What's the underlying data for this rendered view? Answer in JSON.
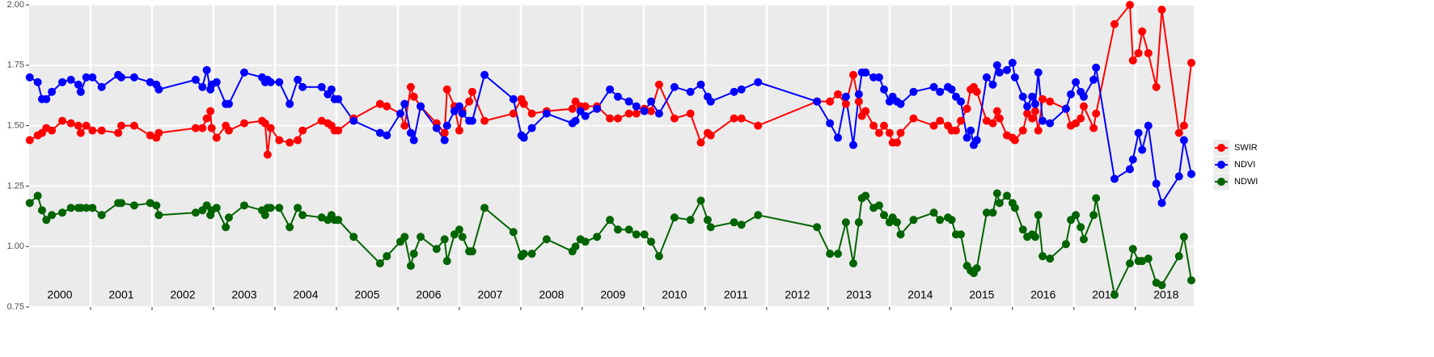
{
  "chart_data": {
    "type": "line",
    "x": [
      2000.01,
      2000.14,
      2000.21,
      2000.28,
      2000.37,
      2000.54,
      2000.68,
      2000.8,
      2000.84,
      2000.93,
      2001.03,
      2001.18,
      2001.45,
      2001.5,
      2001.71,
      2001.97,
      2002.07,
      2002.11,
      2002.71,
      2002.82,
      2002.89,
      2002.95,
      2002.97,
      2003.05,
      2003.2,
      2003.25,
      2003.5,
      2003.79,
      2003.84,
      2003.88,
      2003.93,
      2004.07,
      2004.24,
      2004.37,
      2004.45,
      2004.76,
      2004.86,
      2004.92,
      2004.97,
      2005.03,
      2005.28,
      2005.71,
      2005.82,
      2006.04,
      2006.11,
      2006.21,
      2006.26,
      2006.37,
      2006.63,
      2006.76,
      2006.8,
      2006.92,
      2007.0,
      2007.05,
      2007.16,
      2007.21,
      2007.41,
      2007.88,
      2008.01,
      2008.05,
      2008.18,
      2008.42,
      2008.84,
      2008.89,
      2008.97,
      2009.05,
      2009.24,
      2009.45,
      2009.58,
      2009.76,
      2009.88,
      2010.01,
      2010.12,
      2010.25,
      2010.5,
      2010.76,
      2010.93,
      2011.04,
      2011.09,
      2011.47,
      2011.59,
      2011.86,
      2012.82,
      2013.03,
      2013.16,
      2013.29,
      2013.41,
      2013.5,
      2013.55,
      2013.61,
      2013.74,
      2013.83,
      2013.91,
      2014.0,
      2014.05,
      2014.12,
      2014.18,
      2014.39,
      2014.72,
      2014.82,
      2014.95,
      2015.01,
      2015.08,
      2015.16,
      2015.26,
      2015.32,
      2015.37,
      2015.42,
      2015.58,
      2015.68,
      2015.75,
      2015.79,
      2015.91,
      2016.0,
      2016.04,
      2016.17,
      2016.24,
      2016.32,
      2016.37,
      2016.42,
      2016.49,
      2016.61,
      2016.87,
      2016.95,
      2017.03,
      2017.11,
      2017.16,
      2017.32,
      2017.36,
      2017.66,
      2017.91,
      2017.96,
      2018.05,
      2018.11,
      2018.21,
      2018.34,
      2018.43,
      2018.71,
      2018.79,
      2018.91
    ],
    "series": [
      {
        "name": "SWIR",
        "color": "#ff0000",
        "values": [
          1.44,
          1.46,
          1.47,
          1.49,
          1.48,
          1.52,
          1.51,
          1.5,
          1.47,
          1.5,
          1.48,
          1.48,
          1.47,
          1.5,
          1.5,
          1.46,
          1.45,
          1.47,
          1.49,
          1.49,
          1.53,
          1.56,
          1.49,
          1.45,
          1.5,
          1.48,
          1.51,
          1.52,
          1.51,
          1.38,
          1.49,
          1.44,
          1.43,
          1.44,
          1.48,
          1.52,
          1.51,
          1.5,
          1.48,
          1.48,
          1.53,
          1.59,
          1.58,
          1.55,
          1.5,
          1.66,
          1.62,
          1.58,
          1.51,
          1.47,
          1.65,
          1.58,
          1.48,
          1.56,
          1.6,
          1.64,
          1.52,
          1.55,
          1.61,
          1.59,
          1.55,
          1.56,
          1.57,
          1.6,
          1.58,
          1.58,
          1.58,
          1.53,
          1.53,
          1.55,
          1.55,
          1.57,
          1.56,
          1.67,
          1.53,
          1.55,
          1.43,
          1.47,
          1.46,
          1.53,
          1.53,
          1.5,
          1.6,
          1.6,
          1.63,
          1.59,
          1.71,
          1.6,
          1.54,
          1.56,
          1.5,
          1.47,
          1.5,
          1.47,
          1.43,
          1.43,
          1.47,
          1.53,
          1.5,
          1.52,
          1.5,
          1.48,
          1.48,
          1.52,
          1.57,
          1.65,
          1.66,
          1.64,
          1.52,
          1.51,
          1.56,
          1.53,
          1.46,
          1.45,
          1.44,
          1.48,
          1.55,
          1.53,
          1.56,
          1.48,
          1.61,
          1.6,
          1.57,
          1.5,
          1.51,
          1.53,
          1.58,
          1.49,
          1.55,
          1.92,
          2.0,
          1.77,
          1.8,
          1.89,
          1.8,
          1.66,
          1.98,
          1.47,
          1.5,
          1.76
        ]
      },
      {
        "name": "NDVI",
        "color": "#0000ff",
        "values": [
          1.7,
          1.68,
          1.61,
          1.61,
          1.64,
          1.68,
          1.69,
          1.67,
          1.64,
          1.7,
          1.7,
          1.66,
          1.71,
          1.7,
          1.7,
          1.68,
          1.67,
          1.65,
          1.69,
          1.66,
          1.73,
          1.65,
          1.67,
          1.68,
          1.59,
          1.59,
          1.72,
          1.7,
          1.68,
          1.69,
          1.68,
          1.68,
          1.59,
          1.69,
          1.66,
          1.66,
          1.63,
          1.65,
          1.61,
          1.61,
          1.52,
          1.47,
          1.46,
          1.55,
          1.59,
          1.47,
          1.44,
          1.58,
          1.49,
          1.44,
          1.5,
          1.56,
          1.58,
          1.55,
          1.52,
          1.52,
          1.71,
          1.61,
          1.46,
          1.45,
          1.49,
          1.55,
          1.51,
          1.52,
          1.56,
          1.54,
          1.57,
          1.65,
          1.62,
          1.6,
          1.58,
          1.56,
          1.6,
          1.55,
          1.66,
          1.64,
          1.67,
          1.62,
          1.6,
          1.64,
          1.65,
          1.68,
          1.6,
          1.51,
          1.45,
          1.62,
          1.42,
          1.63,
          1.72,
          1.72,
          1.7,
          1.7,
          1.65,
          1.6,
          1.62,
          1.6,
          1.59,
          1.64,
          1.66,
          1.64,
          1.66,
          1.65,
          1.62,
          1.6,
          1.45,
          1.48,
          1.42,
          1.44,
          1.7,
          1.67,
          1.75,
          1.72,
          1.73,
          1.76,
          1.7,
          1.62,
          1.58,
          1.62,
          1.59,
          1.72,
          1.52,
          1.51,
          1.57,
          1.63,
          1.68,
          1.64,
          1.62,
          1.69,
          1.74,
          1.28,
          1.32,
          1.36,
          1.47,
          1.4,
          1.5,
          1.26,
          1.18,
          1.29,
          1.44,
          1.3
        ]
      },
      {
        "name": "NDWI",
        "color": "#006400",
        "values": [
          1.18,
          1.21,
          1.15,
          1.11,
          1.13,
          1.14,
          1.16,
          1.16,
          1.16,
          1.16,
          1.16,
          1.13,
          1.18,
          1.18,
          1.17,
          1.18,
          1.17,
          1.13,
          1.14,
          1.15,
          1.17,
          1.13,
          1.15,
          1.16,
          1.08,
          1.12,
          1.17,
          1.15,
          1.13,
          1.16,
          1.16,
          1.16,
          1.08,
          1.16,
          1.13,
          1.12,
          1.11,
          1.13,
          1.11,
          1.11,
          1.04,
          0.93,
          0.96,
          1.02,
          1.04,
          0.92,
          0.97,
          1.04,
          0.99,
          1.03,
          0.94,
          1.05,
          1.07,
          1.04,
          0.98,
          0.98,
          1.16,
          1.06,
          0.96,
          0.97,
          0.97,
          1.03,
          0.98,
          1.0,
          1.03,
          1.02,
          1.04,
          1.11,
          1.07,
          1.07,
          1.05,
          1.05,
          1.02,
          0.96,
          1.12,
          1.11,
          1.19,
          1.11,
          1.08,
          1.1,
          1.09,
          1.13,
          1.08,
          0.97,
          0.97,
          1.1,
          0.93,
          1.1,
          1.2,
          1.21,
          1.16,
          1.17,
          1.13,
          1.1,
          1.12,
          1.1,
          1.05,
          1.11,
          1.14,
          1.11,
          1.12,
          1.11,
          1.05,
          1.05,
          0.92,
          0.9,
          0.89,
          0.91,
          1.14,
          1.14,
          1.22,
          1.18,
          1.21,
          1.18,
          1.16,
          1.07,
          1.04,
          1.05,
          1.04,
          1.13,
          0.96,
          0.95,
          1.01,
          1.11,
          1.13,
          1.08,
          1.03,
          1.13,
          1.2,
          0.8,
          0.93,
          0.99,
          0.94,
          0.94,
          0.95,
          0.85,
          0.84,
          0.96,
          1.04,
          0.86
        ]
      }
    ],
    "xlim": [
      2000,
      2018.95
    ],
    "xticks": [
      {
        "value": 2000.5,
        "label": "2000"
      },
      {
        "value": 2001.5,
        "label": "2001"
      },
      {
        "value": 2002.5,
        "label": "2002"
      },
      {
        "value": 2003.5,
        "label": "2003"
      },
      {
        "value": 2004.5,
        "label": "2004"
      },
      {
        "value": 2005.5,
        "label": "2005"
      },
      {
        "value": 2006.5,
        "label": "2006"
      },
      {
        "value": 2007.5,
        "label": "2007"
      },
      {
        "value": 2008.5,
        "label": "2008"
      },
      {
        "value": 2009.5,
        "label": "2009"
      },
      {
        "value": 2010.5,
        "label": "2010"
      },
      {
        "value": 2011.5,
        "label": "2011"
      },
      {
        "value": 2012.5,
        "label": "2012"
      },
      {
        "value": 2013.5,
        "label": "2013"
      },
      {
        "value": 2014.5,
        "label": "2014"
      },
      {
        "value": 2015.5,
        "label": "2015"
      },
      {
        "value": 2016.5,
        "label": "2016"
      },
      {
        "value": 2017.5,
        "label": "2017"
      },
      {
        "value": 2018.5,
        "label": "2018"
      }
    ],
    "ylim": [
      0.75,
      2
    ],
    "yticks": [
      0.75,
      {
        "value": 1,
        "label": "1.00"
      },
      1.25,
      {
        "value": 1.5,
        "label": "1.50"
      },
      1.75,
      {
        "value": 2,
        "label": "2.00"
      }
    ],
    "grid": true,
    "legend": "right"
  }
}
